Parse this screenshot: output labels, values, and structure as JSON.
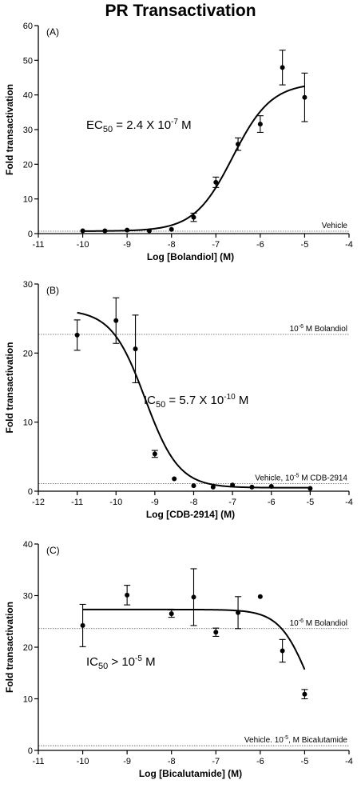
{
  "title": "PR Transactivation",
  "chart_data": [
    {
      "type": "scatter",
      "panel_label": "(A)",
      "xlabel": "Log [Bolandiol] (M)",
      "ylabel": "Fold transactivation",
      "xlim": [
        -11,
        -4
      ],
      "ylim": [
        0,
        60
      ],
      "xticks": [
        "-11",
        "-10",
        "-9",
        "-8",
        "-7",
        "-6",
        "-5",
        "-4"
      ],
      "yticks": [
        "0",
        "10",
        "20",
        "30",
        "40",
        "50",
        "60"
      ],
      "points": [
        {
          "x": -10,
          "y": 0.8,
          "err": 0
        },
        {
          "x": -9.5,
          "y": 0.8,
          "err": 0
        },
        {
          "x": -9,
          "y": 1.0,
          "err": 0
        },
        {
          "x": -8.5,
          "y": 0.8,
          "err": 0
        },
        {
          "x": -8,
          "y": 1.2,
          "err": 0
        },
        {
          "x": -7.5,
          "y": 4.7,
          "err": 1.2
        },
        {
          "x": -7,
          "y": 14.8,
          "err": 1.5
        },
        {
          "x": -6.5,
          "y": 25.8,
          "err": 1.8
        },
        {
          "x": -6,
          "y": 31.6,
          "err": 2.4
        },
        {
          "x": -5.5,
          "y": 47.9,
          "err": 5.0
        },
        {
          "x": -5,
          "y": 39.3,
          "err": 7.0
        }
      ],
      "fit": {
        "bottom": 0.7,
        "top": 43.5,
        "logx50": -6.62,
        "hill": 1.0
      },
      "reference_lines": [
        {
          "label": "Vehicle",
          "y": 0.7
        }
      ],
      "annotation": {
        "prefix": "EC",
        "sub": "50",
        "mid": " = 2.4 X 10",
        "sup": "-7",
        "suffix": " M"
      }
    },
    {
      "type": "scatter",
      "panel_label": "(B)",
      "xlabel": "Log [CDB-2914] (M)",
      "ylabel": "Fold transactivation",
      "xlim": [
        -12,
        -4
      ],
      "ylim": [
        0,
        30
      ],
      "xticks": [
        "-12",
        "-11",
        "-10",
        "-9",
        "-8",
        "-7",
        "-6",
        "-5",
        "-4"
      ],
      "yticks": [
        "0",
        "10",
        "20",
        "30"
      ],
      "points": [
        {
          "x": -11,
          "y": 22.6,
          "err": 2.2
        },
        {
          "x": -10,
          "y": 24.7,
          "err": 3.3
        },
        {
          "x": -9.5,
          "y": 20.6,
          "err": 4.9
        },
        {
          "x": -9,
          "y": 5.4,
          "err": 0.5
        },
        {
          "x": -8.5,
          "y": 1.8,
          "err": 0
        },
        {
          "x": -8,
          "y": 0.8,
          "err": 0
        },
        {
          "x": -7.5,
          "y": 0.6,
          "err": 0
        },
        {
          "x": -7,
          "y": 0.9,
          "err": 0
        },
        {
          "x": -6.5,
          "y": 0.6,
          "err": 0
        },
        {
          "x": -6,
          "y": 0.7,
          "err": 0
        },
        {
          "x": -5,
          "y": 0.4,
          "err": 0
        }
      ],
      "fit": {
        "bottom": 0.5,
        "top": 26.3,
        "logx50": -9.25,
        "hill": -1.0,
        "xmin": -11
      },
      "reference_lines": [
        {
          "label_pre": "10",
          "label_sup": "-6",
          "label_post": " M Bolandiol",
          "y": 22.7
        },
        {
          "label_pre": "Vehicle, 10",
          "label_sup": "-5",
          "label_post": " M CDB-2914",
          "y": 1.1
        }
      ],
      "annotation": {
        "prefix": "IC",
        "sub": "50",
        "mid": " = 5.7 X 10",
        "sup": "-10",
        "suffix": " M"
      }
    },
    {
      "type": "scatter",
      "panel_label": "(C)",
      "xlabel": "Log [Bicalutamide] (M)",
      "ylabel": "Fold transactivation",
      "xlim": [
        -11,
        -4
      ],
      "ylim": [
        0,
        40
      ],
      "xticks": [
        "-11",
        "-10",
        "-9",
        "-8",
        "-7",
        "-6",
        "-5",
        "-4"
      ],
      "yticks": [
        "0",
        "10",
        "20",
        "30",
        "40"
      ],
      "points": [
        {
          "x": -10,
          "y": 24.2,
          "err": 4.1
        },
        {
          "x": -9,
          "y": 30.1,
          "err": 1.9
        },
        {
          "x": -8,
          "y": 26.5,
          "err": 0.7
        },
        {
          "x": -7.5,
          "y": 29.7,
          "err": 5.5
        },
        {
          "x": -7,
          "y": 22.9,
          "err": 0.8
        },
        {
          "x": -6.5,
          "y": 26.7,
          "err": 3.1
        },
        {
          "x": -6,
          "y": 29.8,
          "err": 0
        },
        {
          "x": -5.5,
          "y": 19.3,
          "err": 2.2
        },
        {
          "x": -5,
          "y": 10.9,
          "err": 0.9
        }
      ],
      "fit": {
        "bottom": 0,
        "top": 27.3,
        "logx50": -4.9,
        "hill": -1.3,
        "xmin": -10,
        "xmax": -5
      },
      "reference_lines": [
        {
          "label_pre": "10",
          "label_sup": "-6",
          "label_post": " M Bolandiol",
          "y": 23.6
        },
        {
          "label_pre": "Vehicle. 10",
          "label_sup": "-5",
          "label_post": ", M Bicalutamide",
          "y": 0.9
        }
      ],
      "annotation": {
        "prefix": "IC",
        "sub": "50",
        "mid": " > 10",
        "sup": "-5",
        "suffix": " M"
      }
    }
  ]
}
